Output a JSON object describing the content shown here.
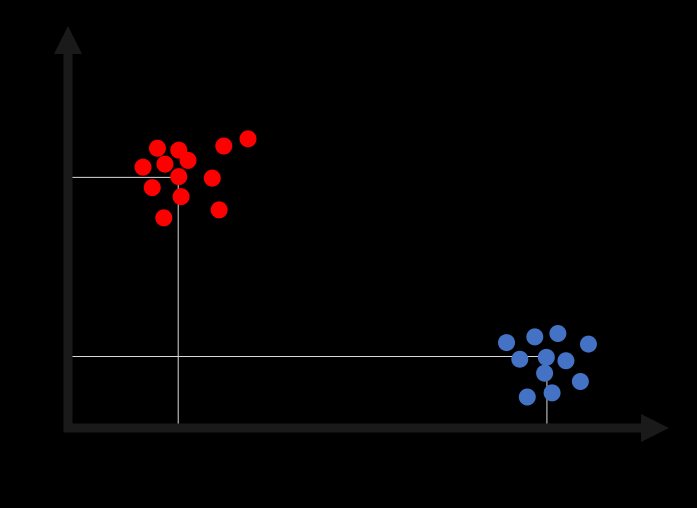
{
  "chart_data": {
    "type": "scatter",
    "title": "",
    "xlabel": "",
    "ylabel": "",
    "grid": false,
    "legend": "none",
    "xlim": [
      0,
      100
    ],
    "ylim": [
      0,
      100
    ],
    "axis_color": "#1a1a1a",
    "guide_color": "#d9d9d9",
    "series": [
      {
        "color": "#ff0000",
        "points": [
          [
            15.5,
            74
          ],
          [
            19.2,
            73.5
          ],
          [
            27,
            74.6
          ],
          [
            31.2,
            76.5
          ],
          [
            13,
            69
          ],
          [
            16.8,
            69.8
          ],
          [
            20.8,
            70.8
          ],
          [
            25,
            66.1
          ],
          [
            19.2,
            66.5
          ],
          [
            14.6,
            63.6
          ],
          [
            19.6,
            61.2
          ],
          [
            16.6,
            55.6
          ],
          [
            26.2,
            57.7
          ]
        ],
        "guide": {
          "x": 19.1,
          "y": 66.3
        }
      },
      {
        "color": "#4472c4",
        "points": [
          [
            76,
            22.6
          ],
          [
            80.9,
            24.1
          ],
          [
            84.9,
            25
          ],
          [
            90.2,
            22.2
          ],
          [
            78.3,
            18.2
          ],
          [
            82.9,
            18.7
          ],
          [
            86.3,
            17.8
          ],
          [
            82.6,
            14.5
          ],
          [
            88.8,
            12.3
          ],
          [
            79.6,
            8.2
          ],
          [
            83.9,
            9.3
          ]
        ],
        "guide": {
          "x": 83.0,
          "y": 18.9
        }
      }
    ]
  }
}
